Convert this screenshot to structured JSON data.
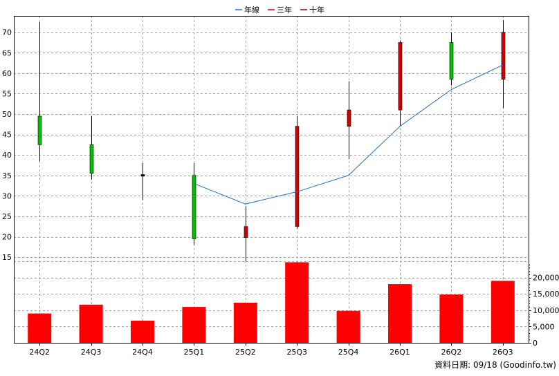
{
  "chart_data": {
    "type": "candlestick+line+bar",
    "legend": {
      "placement": "top-center",
      "items": [
        {
          "name": "年線",
          "color": "#1f6fd6"
        },
        {
          "name": "三年",
          "color": "#d00000"
        },
        {
          "name": "十年",
          "color": "#800000"
        }
      ]
    },
    "categories": [
      "24Q2",
      "24Q3",
      "24Q4",
      "25Q1",
      "25Q2",
      "25Q3",
      "25Q4",
      "26Q1",
      "26Q2",
      "26Q3"
    ],
    "price_axis": {
      "ylim": [
        14,
        74
      ],
      "ticks": [
        15,
        20,
        25,
        30,
        35,
        40,
        45,
        50,
        55,
        60,
        65,
        70
      ],
      "tick_labels": [
        "15",
        "20",
        "25",
        "30",
        "35",
        "40",
        "45",
        "50",
        "55",
        "60",
        "65",
        "70"
      ]
    },
    "candles": [
      {
        "open": 49.5,
        "high": 72.5,
        "low": 38.5,
        "close": 42.5,
        "color": "#00c000"
      },
      {
        "open": 42.5,
        "high": 49.5,
        "low": 34.0,
        "close": 35.5,
        "color": "#00c000"
      },
      {
        "open": 35.2,
        "high": 38.0,
        "low": 29.0,
        "close": 34.8,
        "color": "#000000"
      },
      {
        "open": 35.0,
        "high": 38.0,
        "low": 18.0,
        "close": 19.5,
        "color": "#00c000"
      },
      {
        "open": 19.8,
        "high": 27.5,
        "low": 14.0,
        "close": 22.5,
        "color": "#d00000"
      },
      {
        "open": 22.5,
        "high": 49.5,
        "low": 22.0,
        "close": 47.0,
        "color": "#d00000"
      },
      {
        "open": 47.0,
        "high": 58.0,
        "low": 39.0,
        "close": 51.0,
        "color": "#d00000"
      },
      {
        "open": 51.0,
        "high": 68.0,
        "low": 47.0,
        "close": 67.5,
        "color": "#d00000"
      },
      {
        "open": 67.5,
        "high": 70.0,
        "low": 57.0,
        "close": 58.5,
        "color": "#00c000"
      },
      {
        "open": 58.5,
        "high": 73.0,
        "low": 51.5,
        "close": 70.0,
        "color": "#d00000"
      }
    ],
    "ma_line": {
      "name": "年線",
      "color": "#1f6fd6",
      "values": [
        null,
        null,
        null,
        33.0,
        28.0,
        31.0,
        35.0,
        47.0,
        56.0,
        62.0
      ]
    },
    "volume_axis": {
      "ylim": [
        0,
        25000
      ],
      "ticks": [
        0,
        5000,
        10000,
        15000,
        20000
      ],
      "tick_labels": [
        "0",
        "5,000",
        "10,000",
        "15,000",
        "20,000"
      ]
    },
    "volume": {
      "color": "#ff0000",
      "values": [
        9000,
        11700,
        6800,
        11000,
        12300,
        24700,
        9800,
        18000,
        14800,
        19000
      ]
    },
    "grid": true
  },
  "footer": {
    "source_text": "資料日期: 09/18  (Goodinfo.tw)"
  }
}
